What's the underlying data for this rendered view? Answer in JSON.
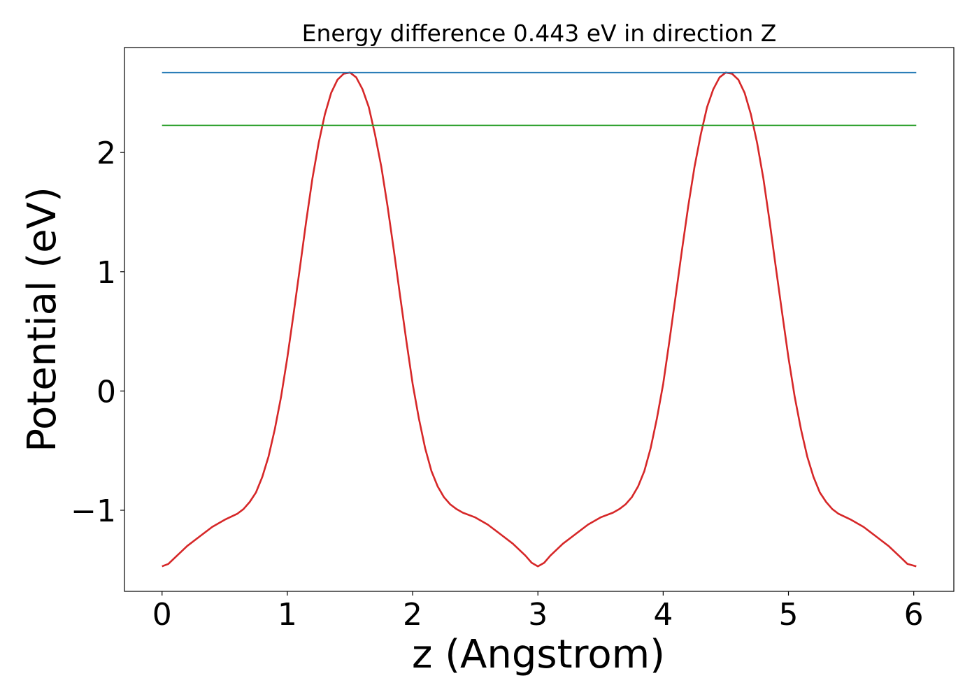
{
  "chart_data": {
    "type": "line",
    "title": "Energy difference 0.443 eV in direction Z",
    "xlabel": "z (Angstrom)",
    "ylabel": "Potential (eV)",
    "xlim": [
      -0.3,
      6.32
    ],
    "ylim": [
      -1.68,
      2.88
    ],
    "xticks": [
      0,
      1,
      2,
      3,
      4,
      5,
      6
    ],
    "xtick_labels": [
      "0",
      "1",
      "2",
      "3",
      "4",
      "5",
      "6"
    ],
    "yticks": [
      -1,
      0,
      1,
      2
    ],
    "ytick_labels": [
      "−1",
      "0",
      "1",
      "2"
    ],
    "grid": false,
    "series": [
      {
        "color": "#d62728",
        "x": [
          0,
          0.05,
          0.1,
          0.2,
          0.3,
          0.4,
          0.5,
          0.6,
          0.65,
          0.7,
          0.75,
          0.8,
          0.85,
          0.9,
          0.95,
          1.0,
          1.05,
          1.1,
          1.15,
          1.2,
          1.25,
          1.3,
          1.35,
          1.4,
          1.45,
          1.5,
          1.55,
          1.6,
          1.65,
          1.7,
          1.75,
          1.8,
          1.85,
          1.9,
          1.95,
          2.0,
          2.05,
          2.1,
          2.15,
          2.2,
          2.25,
          2.3,
          2.35,
          2.4,
          2.5,
          2.6,
          2.7,
          2.8,
          2.9,
          2.95,
          3.0,
          3.05,
          3.1,
          3.2,
          3.3,
          3.4,
          3.5,
          3.6,
          3.65,
          3.7,
          3.75,
          3.8,
          3.85,
          3.9,
          3.95,
          4.0,
          4.05,
          4.1,
          4.15,
          4.2,
          4.25,
          4.3,
          4.35,
          4.4,
          4.45,
          4.5,
          4.55,
          4.6,
          4.65,
          4.7,
          4.75,
          4.8,
          4.85,
          4.9,
          4.95,
          5.0,
          5.05,
          5.1,
          5.15,
          5.2,
          5.25,
          5.3,
          5.35,
          5.4,
          5.5,
          5.6,
          5.7,
          5.8,
          5.9,
          5.95,
          6.02
        ],
        "y": [
          -1.47,
          -1.45,
          -1.4,
          -1.3,
          -1.22,
          -1.14,
          -1.08,
          -1.03,
          -0.99,
          -0.93,
          -0.85,
          -0.72,
          -0.55,
          -0.32,
          -0.05,
          0.28,
          0.65,
          1.03,
          1.42,
          1.78,
          2.08,
          2.32,
          2.5,
          2.61,
          2.66,
          2.67,
          2.63,
          2.53,
          2.38,
          2.15,
          1.88,
          1.55,
          1.18,
          0.8,
          0.42,
          0.06,
          -0.23,
          -0.48,
          -0.67,
          -0.8,
          -0.89,
          -0.95,
          -0.99,
          -1.02,
          -1.06,
          -1.12,
          -1.2,
          -1.28,
          -1.38,
          -1.44,
          -1.47,
          -1.44,
          -1.38,
          -1.28,
          -1.2,
          -1.12,
          -1.06,
          -1.02,
          -0.99,
          -0.95,
          -0.89,
          -0.8,
          -0.67,
          -0.48,
          -0.23,
          0.06,
          0.42,
          0.8,
          1.18,
          1.55,
          1.88,
          2.15,
          2.38,
          2.53,
          2.63,
          2.67,
          2.66,
          2.61,
          2.5,
          2.32,
          2.08,
          1.78,
          1.42,
          1.03,
          0.65,
          0.28,
          -0.05,
          -0.32,
          -0.55,
          -0.72,
          -0.85,
          -0.93,
          -0.99,
          -1.03,
          -1.08,
          -1.14,
          -1.22,
          -1.3,
          -1.4,
          -1.45,
          -1.47
        ]
      },
      {
        "color": "#1f77b4",
        "x": [
          0,
          6.02
        ],
        "y": [
          2.67,
          2.67
        ]
      },
      {
        "color": "#2ca02c",
        "x": [
          0,
          6.02
        ],
        "y": [
          2.227,
          2.227
        ]
      }
    ]
  }
}
